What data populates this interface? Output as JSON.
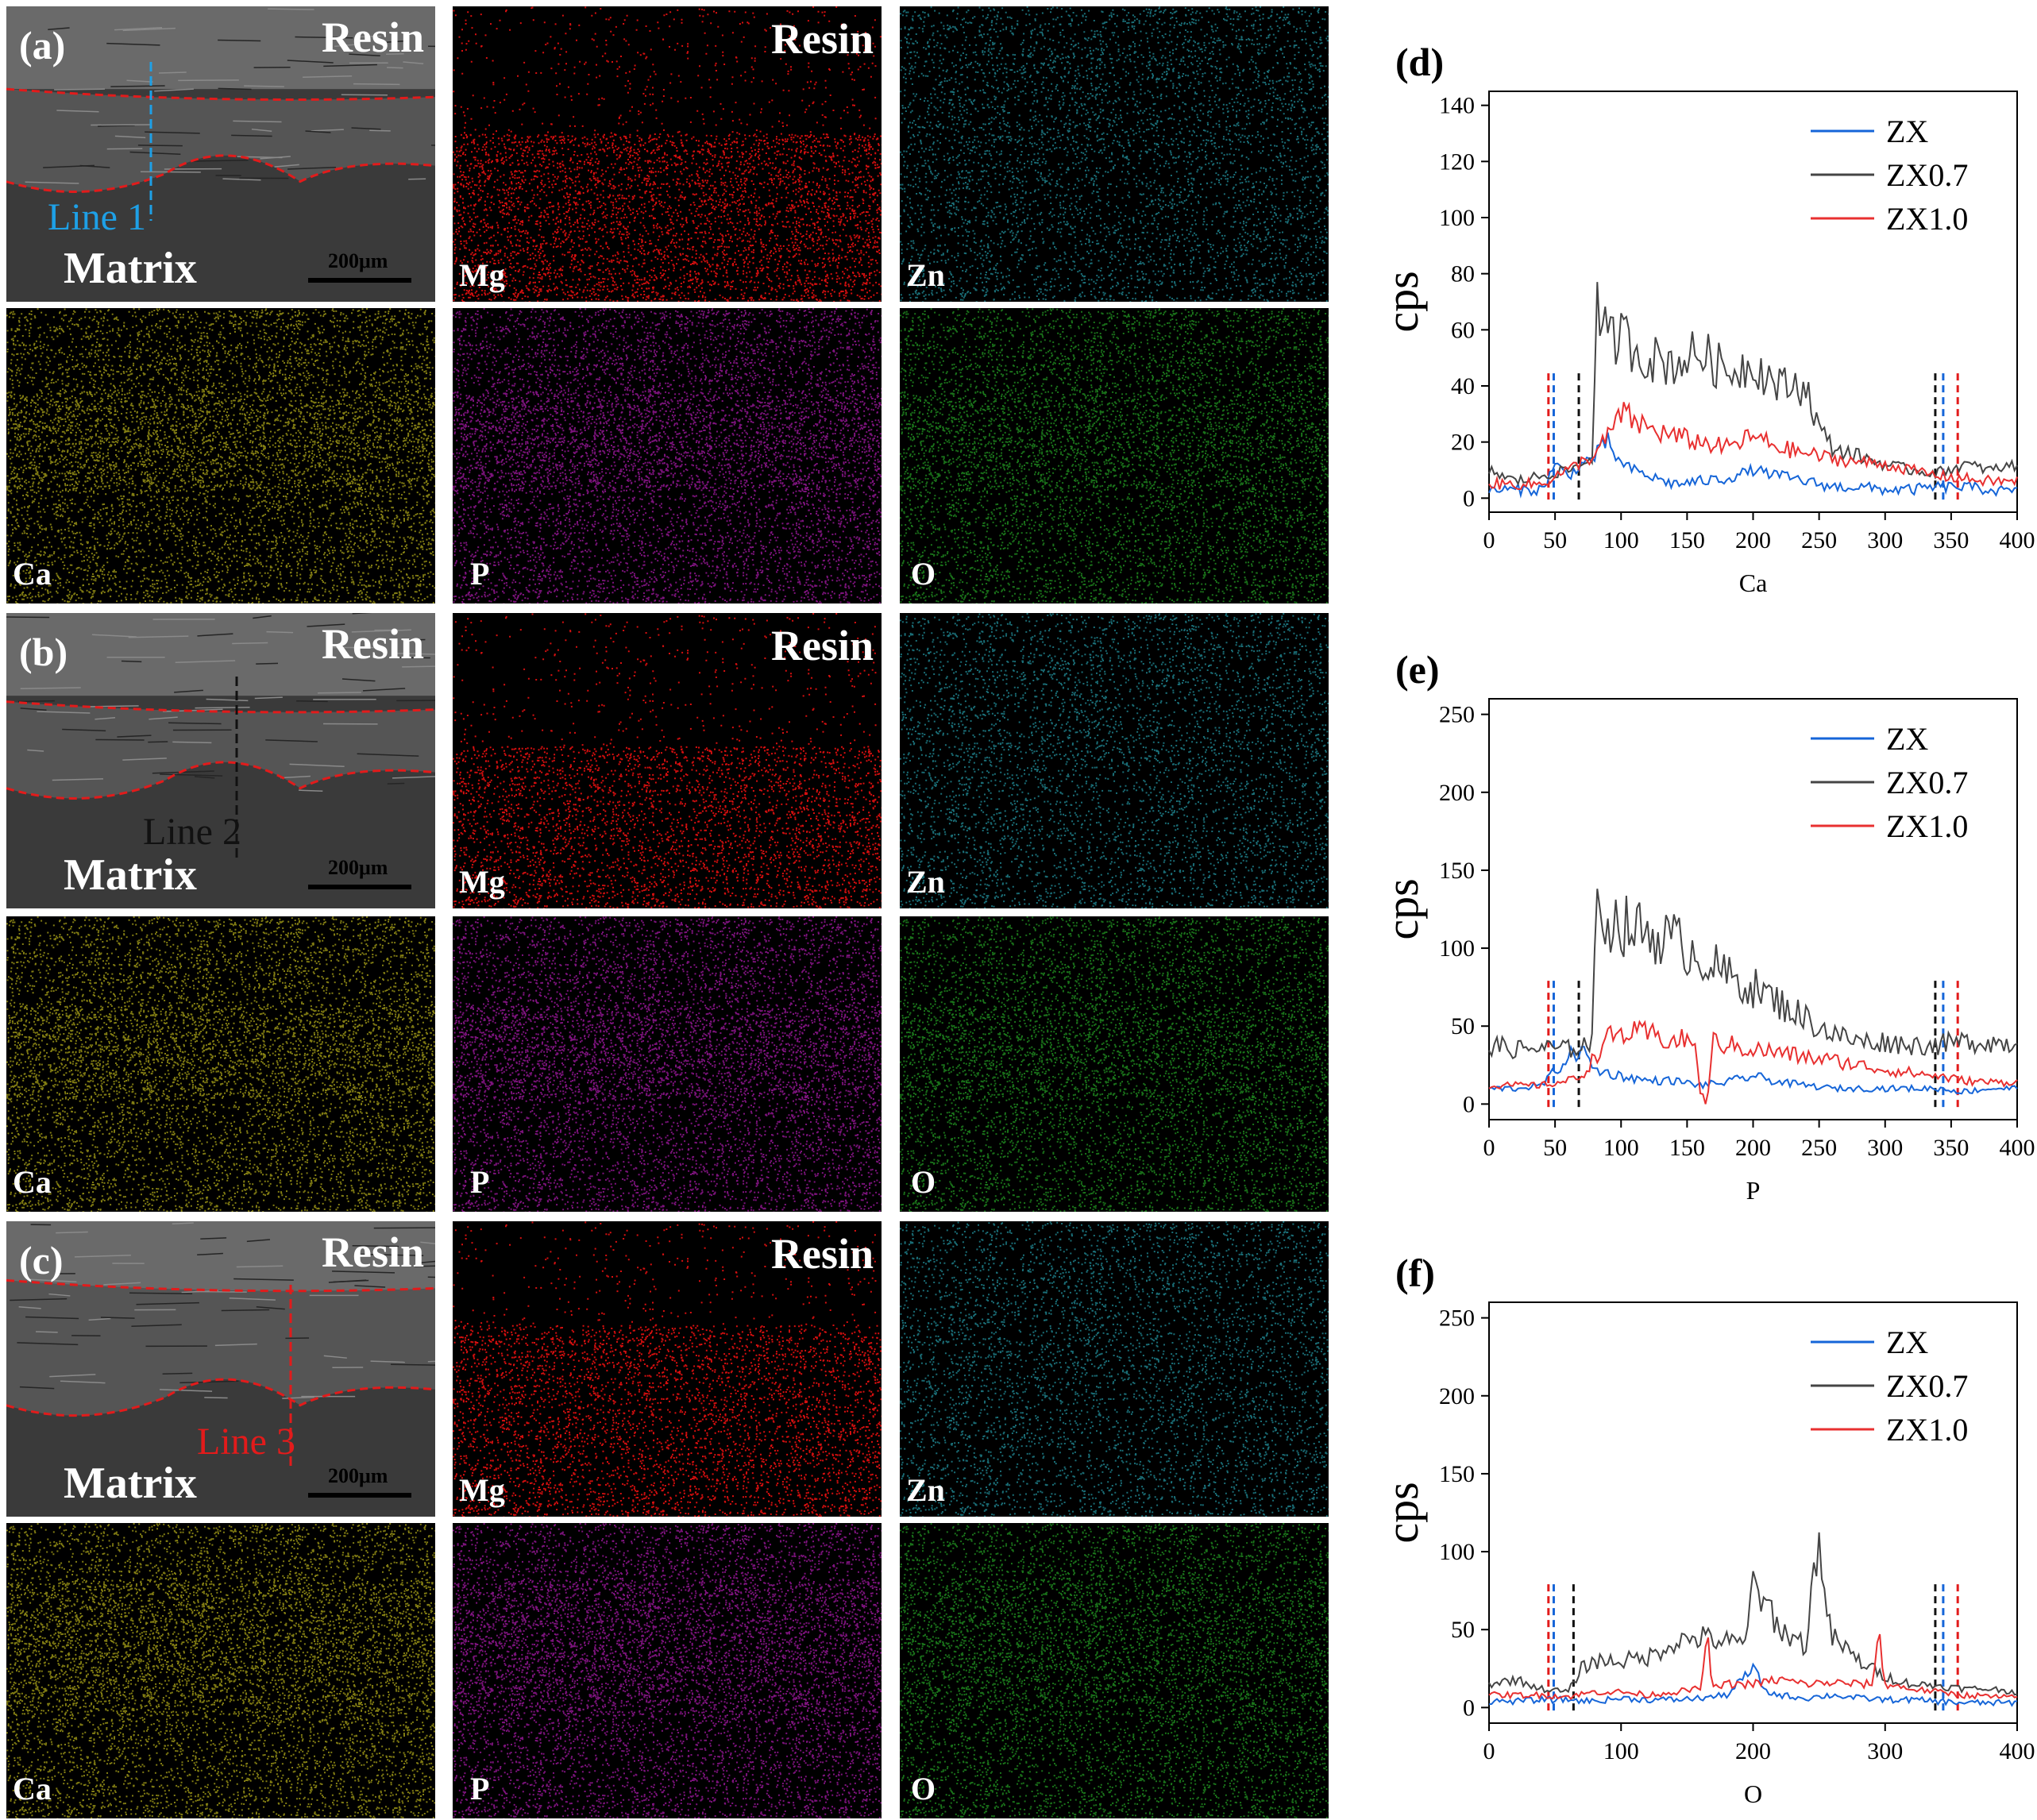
{
  "maps": {
    "rows": [
      {
        "letter": "(a)",
        "sem": {
          "resin": "Resin",
          "matrix": "Matrix",
          "scale": "200μm",
          "line_label": "Line 1",
          "line_color": "#1ea0e6"
        },
        "mg": {
          "element": "Mg",
          "resin": "Resin"
        },
        "zn": {
          "element": "Zn"
        },
        "ca": {
          "element": "Ca"
        },
        "p": {
          "element": "P"
        },
        "o": {
          "element": "O"
        }
      },
      {
        "letter": "(b)",
        "sem": {
          "resin": "Resin",
          "matrix": "Matrix",
          "scale": "200μm",
          "line_label": "Line 2",
          "line_color": "#111111"
        },
        "mg": {
          "element": "Mg",
          "resin": "Resin"
        },
        "zn": {
          "element": "Zn"
        },
        "ca": {
          "element": "Ca"
        },
        "p": {
          "element": "P"
        },
        "o": {
          "element": "O"
        }
      },
      {
        "letter": "(c)",
        "sem": {
          "resin": "Resin",
          "matrix": "Matrix",
          "scale": "200μm",
          "line_label": "Line 3",
          "line_color": "#e21b1b"
        },
        "mg": {
          "element": "Mg",
          "resin": "Resin"
        },
        "zn": {
          "element": "Zn"
        },
        "ca": {
          "element": "Ca"
        },
        "p": {
          "element": "P"
        },
        "o": {
          "element": "O"
        }
      }
    ],
    "colors": {
      "mg": "#e21010",
      "zn": "#30c8d8",
      "ca": "#d8d020",
      "p": "#d020d0",
      "o": "#30d030",
      "sem_bg": "#3c3c3c"
    }
  },
  "chart_data": [
    {
      "type": "line",
      "panel": "(d)",
      "xlabel": "Ca",
      "ylabel": "cps",
      "xlim": [
        0,
        400
      ],
      "ylim": [
        -5,
        145
      ],
      "xticks": [
        0,
        50,
        100,
        150,
        200,
        250,
        300,
        350,
        400
      ],
      "yticks": [
        0,
        20,
        40,
        60,
        80,
        100,
        120,
        140
      ],
      "legend": [
        "ZX",
        "ZX0.7",
        "ZX1.0"
      ],
      "legend_placement": "top-right",
      "boundaries": [
        {
          "x": 45,
          "color": "#e21b1b"
        },
        {
          "x": 49,
          "color": "#1565d8"
        },
        {
          "x": 68,
          "color": "#111111"
        },
        {
          "x": 338,
          "color": "#111111"
        },
        {
          "x": 344,
          "color": "#1565d8"
        },
        {
          "x": 355,
          "color": "#e21b1b"
        }
      ],
      "series": [
        {
          "name": "ZX",
          "color": "#1565d8",
          "x": [
            0,
            20,
            40,
            50,
            60,
            70,
            80,
            90,
            100,
            120,
            140,
            160,
            180,
            200,
            220,
            240,
            260,
            280,
            300,
            320,
            340,
            360,
            380,
            400
          ],
          "values": [
            3,
            3,
            3,
            12,
            8,
            12,
            15,
            20,
            12,
            8,
            5,
            6,
            7,
            10,
            8,
            6,
            4,
            4,
            3,
            3,
            4,
            4,
            3,
            2
          ]
        },
        {
          "name": "ZX0.7",
          "color": "#454545",
          "x": [
            0,
            20,
            40,
            60,
            70,
            78,
            82,
            90,
            100,
            120,
            140,
            160,
            180,
            200,
            220,
            240,
            250,
            260,
            280,
            300,
            320,
            340,
            360,
            380,
            400
          ],
          "values": [
            10,
            6,
            8,
            10,
            12,
            15,
            68,
            55,
            58,
            50,
            48,
            52,
            45,
            48,
            40,
            40,
            25,
            18,
            15,
            12,
            10,
            9,
            12,
            10,
            12
          ]
        },
        {
          "name": "ZX1.0",
          "color": "#e83030",
          "x": [
            0,
            20,
            40,
            50,
            60,
            70,
            80,
            90,
            100,
            120,
            140,
            160,
            180,
            200,
            220,
            240,
            260,
            280,
            300,
            320,
            340,
            360,
            380,
            400
          ],
          "values": [
            5,
            5,
            5,
            8,
            10,
            13,
            15,
            22,
            30,
            25,
            22,
            20,
            18,
            22,
            18,
            16,
            14,
            13,
            12,
            10,
            8,
            7,
            6,
            6
          ]
        }
      ]
    },
    {
      "type": "line",
      "panel": "(e)",
      "xlabel": "P",
      "ylabel": "cps",
      "xlim": [
        0,
        400
      ],
      "ylim": [
        -10,
        260
      ],
      "xticks": [
        0,
        50,
        100,
        150,
        200,
        250,
        300,
        350,
        400
      ],
      "yticks": [
        0,
        50,
        100,
        150,
        200,
        250
      ],
      "legend": [
        "ZX",
        "ZX0.7",
        "ZX1.0"
      ],
      "legend_placement": "top-right",
      "boundaries": [
        {
          "x": 45,
          "color": "#e21b1b"
        },
        {
          "x": 49,
          "color": "#1565d8"
        },
        {
          "x": 68,
          "color": "#111111"
        },
        {
          "x": 338,
          "color": "#111111"
        },
        {
          "x": 344,
          "color": "#1565d8"
        },
        {
          "x": 355,
          "color": "#e21b1b"
        }
      ],
      "series": [
        {
          "name": "ZX",
          "color": "#1565d8",
          "x": [
            0,
            20,
            40,
            60,
            70,
            80,
            100,
            120,
            140,
            160,
            180,
            200,
            220,
            240,
            260,
            280,
            300,
            320,
            340,
            360,
            380,
            400
          ],
          "values": [
            10,
            10,
            12,
            30,
            35,
            22,
            18,
            15,
            15,
            12,
            14,
            18,
            14,
            12,
            10,
            10,
            10,
            10,
            10,
            8,
            10,
            10
          ]
        },
        {
          "name": "ZX0.7",
          "color": "#454545",
          "x": [
            0,
            20,
            40,
            60,
            70,
            78,
            82,
            90,
            100,
            120,
            140,
            160,
            180,
            200,
            220,
            240,
            260,
            280,
            300,
            320,
            340,
            360,
            380,
            400
          ],
          "values": [
            38,
            35,
            36,
            35,
            38,
            40,
            130,
            118,
            115,
            110,
            105,
            95,
            82,
            75,
            65,
            55,
            45,
            40,
            40,
            38,
            38,
            40,
            40,
            38
          ]
        },
        {
          "name": "ZX1.0",
          "color": "#e83030",
          "x": [
            0,
            20,
            40,
            60,
            70,
            80,
            90,
            100,
            120,
            140,
            155,
            160,
            165,
            170,
            180,
            200,
            220,
            240,
            260,
            280,
            300,
            320,
            340,
            360,
            380,
            400
          ],
          "values": [
            12,
            12,
            12,
            15,
            18,
            30,
            42,
            45,
            45,
            40,
            42,
            8,
            0,
            40,
            38,
            35,
            33,
            30,
            28,
            25,
            22,
            20,
            18,
            15,
            14,
            14
          ]
        }
      ]
    },
    {
      "type": "line",
      "panel": "(f)",
      "xlabel": "O",
      "ylabel": "cps",
      "xlim": [
        0,
        400
      ],
      "ylim": [
        -10,
        260
      ],
      "xticks": [
        0,
        100,
        200,
        300,
        400
      ],
      "yticks": [
        0,
        50,
        100,
        150,
        200,
        250
      ],
      "legend": [
        "ZX",
        "ZX0.7",
        "ZX1.0"
      ],
      "legend_placement": "top-right",
      "boundaries": [
        {
          "x": 45,
          "color": "#e21b1b"
        },
        {
          "x": 49,
          "color": "#1565d8"
        },
        {
          "x": 64,
          "color": "#111111"
        },
        {
          "x": 338,
          "color": "#111111"
        },
        {
          "x": 344,
          "color": "#1565d8"
        },
        {
          "x": 355,
          "color": "#e21b1b"
        }
      ],
      "series": [
        {
          "name": "ZX",
          "color": "#1565d8",
          "x": [
            0,
            20,
            40,
            60,
            80,
            100,
            120,
            140,
            160,
            180,
            200,
            210,
            220,
            240,
            260,
            280,
            300,
            320,
            340,
            360,
            380,
            400
          ],
          "values": [
            4,
            4,
            5,
            5,
            4,
            6,
            5,
            5,
            6,
            8,
            25,
            10,
            8,
            6,
            8,
            6,
            5,
            5,
            4,
            3,
            3,
            3
          ]
        },
        {
          "name": "ZX0.7",
          "color": "#454545",
          "x": [
            0,
            20,
            40,
            60,
            70,
            80,
            100,
            120,
            140,
            160,
            180,
            195,
            200,
            205,
            210,
            220,
            240,
            250,
            255,
            260,
            280,
            300,
            320,
            340,
            360,
            380,
            400
          ],
          "values": [
            15,
            18,
            12,
            10,
            25,
            30,
            30,
            32,
            42,
            45,
            42,
            40,
            100,
            55,
            70,
            50,
            40,
            115,
            60,
            45,
            30,
            20,
            15,
            14,
            12,
            12,
            10
          ]
        },
        {
          "name": "ZX1.0",
          "color": "#e83030",
          "x": [
            0,
            20,
            40,
            60,
            80,
            100,
            120,
            140,
            160,
            165,
            170,
            180,
            200,
            220,
            240,
            260,
            280,
            290,
            295,
            300,
            320,
            340,
            360,
            380,
            400
          ],
          "values": [
            8,
            8,
            8,
            7,
            10,
            10,
            8,
            10,
            12,
            45,
            12,
            15,
            15,
            18,
            15,
            16,
            15,
            15,
            48,
            15,
            12,
            10,
            8,
            7,
            6
          ]
        }
      ]
    }
  ]
}
